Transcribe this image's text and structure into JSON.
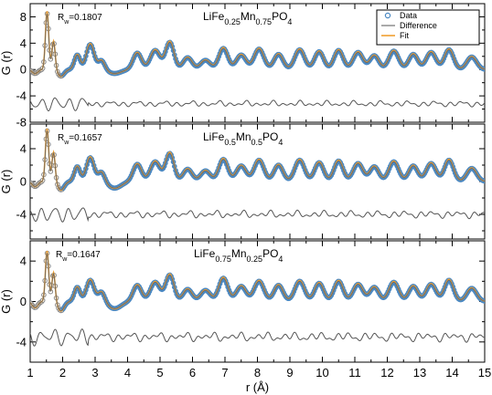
{
  "chart_data": {
    "type": "line",
    "xlabel": "r (Å)",
    "ylabel": "G (r)",
    "xlim": [
      1,
      15
    ],
    "x_ticks": [
      1,
      2,
      3,
      4,
      5,
      6,
      7,
      8,
      9,
      10,
      11,
      12,
      13,
      14,
      15
    ],
    "grid": false,
    "legend": {
      "placement": "top-right",
      "entries": [
        "Data",
        "Difference",
        "Fit"
      ]
    },
    "colors": {
      "data": "#4a88c2",
      "fit": "#f0a030",
      "difference": "#555555",
      "axis": "#000000"
    },
    "panels": [
      {
        "title_prefix": "LiFe",
        "title_parts": [
          {
            "text": "LiFe",
            "sub": false
          },
          {
            "text": "0.25",
            "sub": true
          },
          {
            "text": "Mn",
            "sub": false
          },
          {
            "text": "0.75",
            "sub": true
          },
          {
            "text": "PO",
            "sub": false
          },
          {
            "text": "4",
            "sub": true
          }
        ],
        "rw_label": "R",
        "rw_sub": "w",
        "rw_value": "=0.1807",
        "ylim": [
          -8,
          10
        ],
        "y_ticks": [
          -8,
          -4,
          0,
          4,
          8
        ],
        "y_tick_labels": [
          "-8",
          "-4",
          "0",
          "4",
          "8"
        ],
        "baseline": 0,
        "diff_offset": -5.2,
        "peaks": [
          [
            1.52,
            8.5,
            0.05
          ],
          [
            1.72,
            4.2,
            0.05
          ],
          [
            1.95,
            -1.0,
            0.1
          ],
          [
            2.45,
            2.2,
            0.09
          ],
          [
            2.85,
            3.8,
            0.12
          ],
          [
            3.2,
            1.4,
            0.1
          ],
          [
            3.6,
            -0.6,
            0.2
          ],
          [
            4.3,
            2.5,
            0.13
          ],
          [
            4.85,
            2.9,
            0.15
          ],
          [
            5.3,
            4.1,
            0.13
          ],
          [
            5.85,
            1.8,
            0.14
          ],
          [
            6.4,
            1.4,
            0.15
          ],
          [
            6.95,
            3.2,
            0.14
          ],
          [
            7.5,
            2.2,
            0.15
          ],
          [
            8.05,
            3.1,
            0.15
          ],
          [
            8.65,
            2.3,
            0.14
          ],
          [
            9.3,
            3.0,
            0.15
          ],
          [
            9.9,
            2.7,
            0.14
          ],
          [
            10.5,
            2.9,
            0.14
          ],
          [
            11.1,
            2.6,
            0.15
          ],
          [
            11.6,
            2.1,
            0.14
          ],
          [
            12.2,
            2.8,
            0.15
          ],
          [
            12.8,
            2.3,
            0.14
          ],
          [
            13.35,
            2.6,
            0.15
          ],
          [
            13.9,
            3.0,
            0.14
          ],
          [
            14.6,
            1.9,
            0.15
          ]
        ]
      },
      {
        "title_parts": [
          {
            "text": "LiFe",
            "sub": false
          },
          {
            "text": "0.5",
            "sub": true
          },
          {
            "text": "Mn",
            "sub": false
          },
          {
            "text": "0.5",
            "sub": true
          },
          {
            "text": "PO",
            "sub": false
          },
          {
            "text": "4",
            "sub": true
          }
        ],
        "rw_label": "R",
        "rw_sub": "w",
        "rw_value": "=0.1657",
        "ylim": [
          -7,
          7
        ],
        "y_ticks": [
          -4,
          0,
          4
        ],
        "y_tick_labels": [
          "-4",
          "0",
          "4"
        ],
        "baseline": 0,
        "diff_offset": -4.0,
        "peaks": [
          [
            1.52,
            6.2,
            0.05
          ],
          [
            1.72,
            3.5,
            0.05
          ],
          [
            1.95,
            -1.0,
            0.1
          ],
          [
            2.45,
            1.8,
            0.09
          ],
          [
            2.85,
            2.9,
            0.12
          ],
          [
            3.2,
            1.2,
            0.1
          ],
          [
            3.6,
            -0.8,
            0.2
          ],
          [
            4.3,
            2.1,
            0.13
          ],
          [
            4.85,
            2.4,
            0.15
          ],
          [
            5.3,
            3.4,
            0.13
          ],
          [
            5.85,
            1.5,
            0.14
          ],
          [
            6.4,
            1.3,
            0.15
          ],
          [
            6.95,
            2.7,
            0.14
          ],
          [
            7.5,
            1.9,
            0.15
          ],
          [
            8.05,
            2.6,
            0.15
          ],
          [
            8.65,
            2.0,
            0.14
          ],
          [
            9.3,
            2.6,
            0.15
          ],
          [
            9.9,
            2.3,
            0.14
          ],
          [
            10.5,
            2.5,
            0.14
          ],
          [
            11.1,
            2.2,
            0.15
          ],
          [
            11.6,
            1.8,
            0.14
          ],
          [
            12.2,
            2.4,
            0.15
          ],
          [
            12.8,
            1.9,
            0.14
          ],
          [
            13.35,
            2.2,
            0.15
          ],
          [
            13.9,
            2.6,
            0.14
          ],
          [
            14.6,
            1.6,
            0.15
          ]
        ]
      },
      {
        "title_parts": [
          {
            "text": "LiFe",
            "sub": false
          },
          {
            "text": "0.75",
            "sub": true
          },
          {
            "text": "Mn",
            "sub": false
          },
          {
            "text": "0.25",
            "sub": true
          },
          {
            "text": "PO",
            "sub": false
          },
          {
            "text": "4",
            "sub": true
          }
        ],
        "rw_label": "R",
        "rw_sub": "w",
        "rw_value": "=0.1647",
        "ylim": [
          -6,
          6
        ],
        "y_ticks": [
          -4,
          0,
          4
        ],
        "y_tick_labels": [
          "-4",
          "0",
          "4"
        ],
        "baseline": 0,
        "diff_offset": -3.5,
        "peaks": [
          [
            1.52,
            4.8,
            0.05
          ],
          [
            1.72,
            2.8,
            0.05
          ],
          [
            1.95,
            -0.9,
            0.1
          ],
          [
            2.45,
            1.4,
            0.09
          ],
          [
            2.85,
            2.1,
            0.12
          ],
          [
            3.2,
            1.0,
            0.1
          ],
          [
            3.6,
            -0.7,
            0.2
          ],
          [
            4.3,
            1.6,
            0.13
          ],
          [
            4.85,
            1.9,
            0.15
          ],
          [
            5.3,
            2.6,
            0.13
          ],
          [
            5.85,
            1.2,
            0.14
          ],
          [
            6.4,
            1.1,
            0.15
          ],
          [
            6.95,
            2.3,
            0.14
          ],
          [
            7.5,
            1.5,
            0.15
          ],
          [
            8.05,
            2.0,
            0.15
          ],
          [
            8.65,
            1.6,
            0.14
          ],
          [
            9.3,
            2.0,
            0.15
          ],
          [
            9.9,
            1.8,
            0.14
          ],
          [
            10.5,
            2.0,
            0.14
          ],
          [
            11.1,
            1.7,
            0.15
          ],
          [
            11.6,
            1.4,
            0.14
          ],
          [
            12.2,
            1.9,
            0.15
          ],
          [
            12.8,
            1.5,
            0.14
          ],
          [
            13.35,
            1.7,
            0.15
          ],
          [
            13.9,
            2.1,
            0.14
          ],
          [
            14.6,
            1.3,
            0.15
          ]
        ]
      }
    ]
  }
}
